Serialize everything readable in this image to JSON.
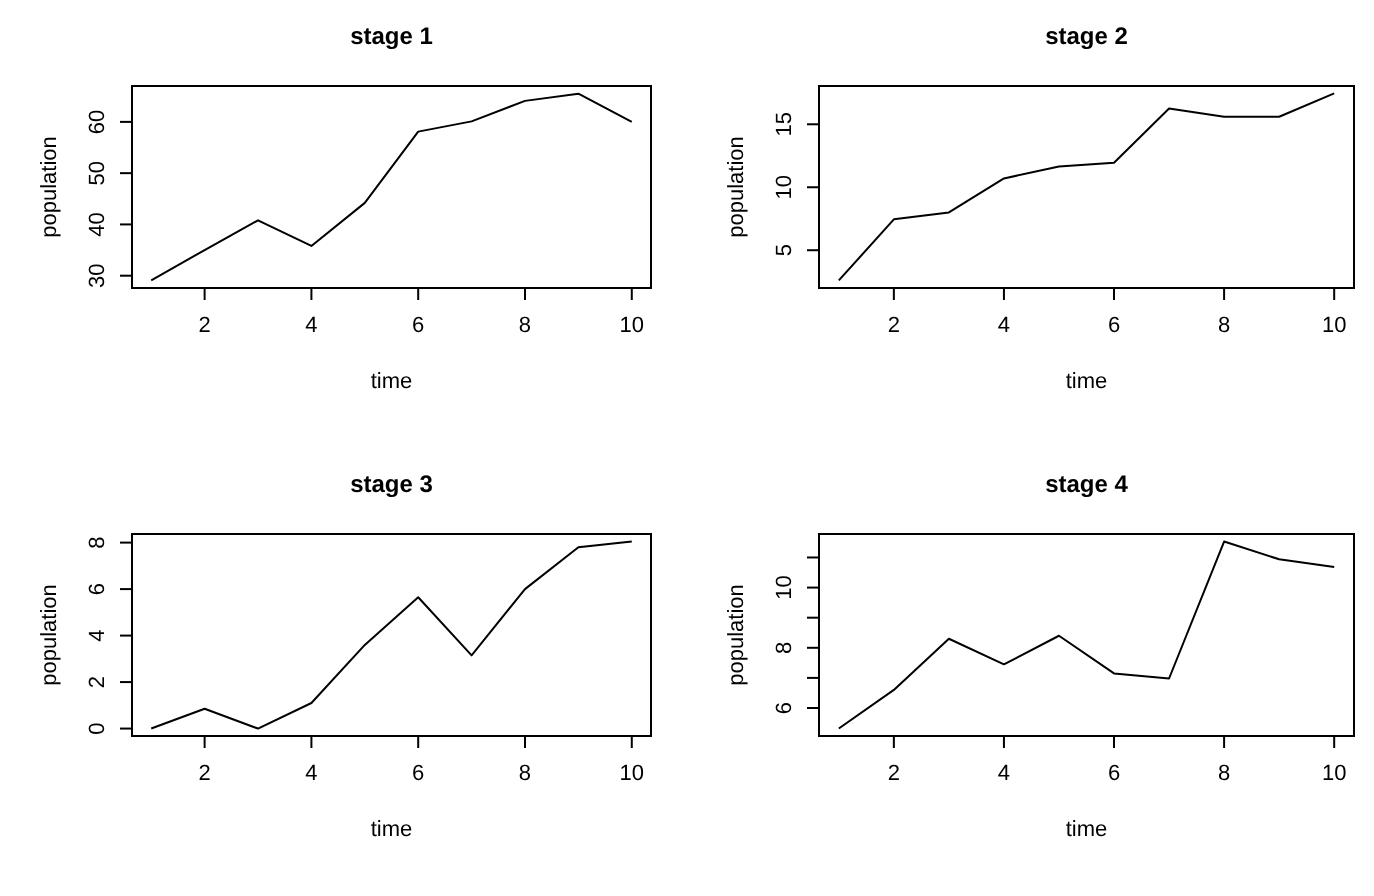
{
  "chart_data": [
    {
      "type": "line",
      "title": "stage 1",
      "xlabel": "time",
      "ylabel": "population",
      "x": [
        1,
        2,
        3,
        4,
        5,
        6,
        7,
        8,
        9,
        10
      ],
      "color": "#000000",
      "values": [
        29.1,
        35,
        40.8,
        35.8,
        44.2,
        58.1,
        60.1,
        64.1,
        65.5,
        60
      ],
      "xlim": [
        0.64,
        10.36
      ],
      "ylim": [
        27.6,
        67.0
      ],
      "xticks": [
        2,
        4,
        6,
        8,
        10
      ],
      "yticks": [
        30,
        40,
        50,
        60
      ]
    },
    {
      "type": "line",
      "title": "stage 2",
      "xlabel": "time",
      "ylabel": "population",
      "x": [
        1,
        2,
        3,
        4,
        5,
        6,
        7,
        8,
        9,
        10
      ],
      "color": "#000000",
      "values": [
        2.6,
        7.45,
        8.0,
        10.7,
        11.65,
        11.95,
        16.25,
        15.6,
        15.6,
        17.45
      ],
      "xlim": [
        0.64,
        10.36
      ],
      "ylim": [
        2.0,
        18.04
      ],
      "xticks": [
        2,
        4,
        6,
        8,
        10
      ],
      "yticks": [
        5,
        10,
        15
      ]
    },
    {
      "type": "line",
      "title": "stage 3",
      "xlabel": "time",
      "ylabel": "population",
      "x": [
        1,
        2,
        3,
        4,
        5,
        6,
        7,
        8,
        9,
        10
      ],
      "color": "#000000",
      "values": [
        0,
        0.85,
        0,
        1.1,
        3.6,
        5.65,
        3.15,
        6.0,
        7.8,
        8.05
      ],
      "xlim": [
        0.64,
        10.36
      ],
      "ylim": [
        -0.32,
        8.37
      ],
      "xticks": [
        2,
        4,
        6,
        8,
        10
      ],
      "yticks": [
        0,
        2,
        4,
        6,
        8
      ]
    },
    {
      "type": "line",
      "title": "stage 4",
      "xlabel": "time",
      "ylabel": "population",
      "x": [
        1,
        2,
        3,
        4,
        5,
        6,
        7,
        8,
        9,
        10
      ],
      "color": "#000000",
      "values": [
        5.32,
        6.6,
        8.3,
        7.45,
        8.4,
        7.15,
        6.98,
        11.53,
        10.94,
        10.68
      ],
      "xlim": [
        0.64,
        10.36
      ],
      "ylim": [
        5.07,
        11.78
      ],
      "xticks": [
        2,
        4,
        6,
        8,
        10
      ],
      "yticks": [
        6,
        {
          "value": 7,
          "label": null
        },
        8,
        {
          "value": 9,
          "label": null
        },
        10,
        {
          "value": 11,
          "label": null
        }
      ]
    }
  ]
}
